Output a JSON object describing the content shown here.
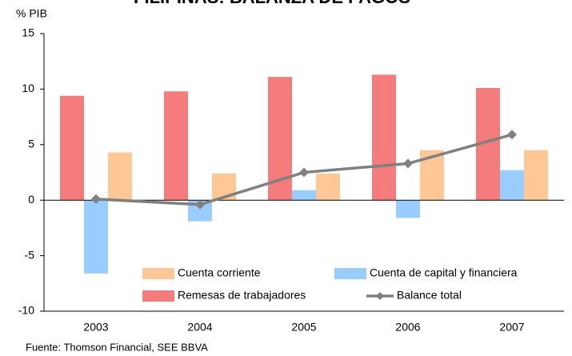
{
  "chart_data": {
    "type": "bar_line",
    "title": "FILIPINAS: BALANZA DE PAGOS",
    "y_label": "% PIB",
    "source": "Fuente: Thomson Financial,  SEE BBVA",
    "categories": [
      "2003",
      "2004",
      "2005",
      "2006",
      "2007"
    ],
    "series": [
      {
        "name": "Remesas de trabajadores",
        "type": "bar",
        "color": "#f47c7c",
        "values": [
          9.4,
          9.8,
          11.1,
          11.3,
          10.1
        ]
      },
      {
        "name": "Cuenta de capital y financiera",
        "type": "bar",
        "color": "#99ccff",
        "values": [
          -6.6,
          -1.9,
          0.9,
          -1.6,
          2.7
        ]
      },
      {
        "name": "Cuenta corriente",
        "type": "bar",
        "color": "#fdc895",
        "values": [
          4.3,
          2.4,
          2.4,
          4.5,
          4.5
        ]
      },
      {
        "name": "Balance total",
        "type": "line",
        "color": "#808080",
        "values": [
          0.1,
          -0.4,
          2.5,
          3.3,
          5.9
        ]
      }
    ],
    "ylim": [
      -10,
      15
    ],
    "yticks": [
      -10,
      -5,
      0,
      5,
      10,
      15
    ],
    "grid": false
  }
}
